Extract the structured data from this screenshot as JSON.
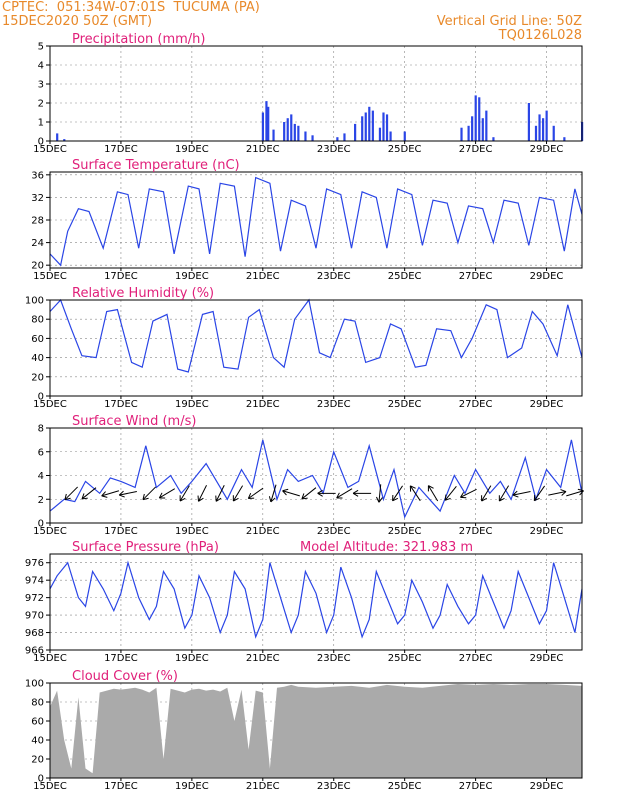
{
  "header": {
    "source": "CPTEC:",
    "coords": "051:34W-07:01S",
    "location": "TUCUMA (PA)",
    "datetime": "15DEC2020 50Z (GMT)",
    "grid_note": "Vertical Grid Line: 50Z",
    "code": "TQ0126L028"
  },
  "colors": {
    "header": "#e8892a",
    "title": "#e0207a",
    "series": "#2a45e6",
    "cloud": "#aaaaaa",
    "arrow": "#000000"
  },
  "x_axis": {
    "day_range": [
      15,
      30
    ],
    "tick_days": [
      15,
      17,
      19,
      21,
      23,
      25,
      27,
      29
    ],
    "tick_labels": [
      "15DEC",
      "17DEC",
      "19DEC",
      "21DEC",
      "23DEC",
      "25DEC",
      "27DEC",
      "29DEC"
    ]
  },
  "chart_data": [
    {
      "id": "precip",
      "type": "bar",
      "title": "Precipitation (mm/h)",
      "ylim": [
        0,
        5
      ],
      "yticks": [
        0,
        1,
        2,
        3,
        4,
        5
      ],
      "x": [
        15.2,
        15.4,
        21.0,
        21.1,
        21.15,
        21.3,
        21.6,
        21.7,
        21.8,
        21.9,
        22.0,
        22.2,
        22.4,
        23.1,
        23.3,
        23.6,
        23.8,
        23.9,
        24.0,
        24.1,
        24.3,
        24.4,
        24.5,
        24.6,
        25.0,
        26.6,
        26.8,
        26.9,
        27.0,
        27.1,
        27.2,
        27.3,
        27.5,
        28.5,
        28.7,
        28.8,
        28.9,
        29.0,
        29.2,
        29.5,
        30.0
      ],
      "values": [
        0.4,
        0.1,
        1.5,
        2.1,
        1.8,
        0.6,
        1.0,
        1.2,
        1.4,
        0.9,
        0.8,
        0.5,
        0.3,
        0.2,
        0.4,
        0.9,
        1.3,
        1.5,
        1.8,
        1.6,
        0.7,
        1.5,
        1.4,
        0.5,
        0.5,
        0.7,
        0.8,
        1.3,
        2.4,
        2.3,
        1.2,
        1.6,
        0.2,
        2.0,
        0.8,
        1.4,
        1.2,
        1.6,
        0.8,
        0.2,
        1.0
      ]
    },
    {
      "id": "temp",
      "type": "line",
      "title": "Surface Temperature (nC)",
      "ylim": [
        19.5,
        36.5
      ],
      "yticks": [
        20,
        24,
        28,
        32,
        36
      ],
      "x": [
        15.0,
        15.3,
        15.5,
        15.8,
        16.1,
        16.5,
        16.9,
        17.2,
        17.5,
        17.8,
        18.2,
        18.5,
        18.9,
        19.2,
        19.5,
        19.8,
        20.2,
        20.5,
        20.8,
        21.2,
        21.5,
        21.8,
        22.2,
        22.5,
        22.8,
        23.2,
        23.5,
        23.8,
        24.2,
        24.5,
        24.8,
        25.2,
        25.5,
        25.8,
        26.2,
        26.5,
        26.8,
        27.2,
        27.5,
        27.8,
        28.2,
        28.5,
        28.8,
        29.2,
        29.5,
        29.8,
        30.0
      ],
      "values": [
        22.0,
        20.0,
        26.0,
        30.0,
        29.5,
        23.0,
        33.0,
        32.5,
        23.0,
        33.5,
        33.0,
        22.0,
        34.0,
        33.5,
        22.0,
        34.5,
        34.0,
        21.5,
        35.5,
        34.5,
        22.5,
        31.5,
        30.5,
        23.0,
        33.5,
        32.5,
        23.0,
        33.0,
        32.0,
        23.0,
        33.5,
        32.5,
        23.5,
        31.5,
        31.0,
        24.0,
        30.5,
        30.0,
        24.0,
        31.5,
        31.0,
        23.5,
        32.0,
        31.5,
        22.5,
        33.5,
        29.0
      ]
    },
    {
      "id": "rh",
      "type": "line",
      "title": "Relative Humidity (%)",
      "ylim": [
        0,
        100
      ],
      "yticks": [
        0,
        20,
        40,
        60,
        80,
        100
      ],
      "x": [
        15.0,
        15.3,
        15.6,
        15.9,
        16.3,
        16.6,
        16.9,
        17.3,
        17.6,
        17.9,
        18.3,
        18.6,
        18.9,
        19.3,
        19.6,
        19.9,
        20.3,
        20.6,
        20.9,
        21.3,
        21.6,
        21.9,
        22.3,
        22.6,
        22.9,
        23.3,
        23.6,
        23.9,
        24.3,
        24.6,
        24.9,
        25.3,
        25.6,
        25.9,
        26.3,
        26.6,
        26.9,
        27.3,
        27.6,
        27.9,
        28.3,
        28.6,
        28.9,
        29.3,
        29.6,
        30.0
      ],
      "values": [
        88,
        100,
        70,
        42,
        40,
        88,
        90,
        35,
        30,
        78,
        85,
        28,
        25,
        85,
        88,
        30,
        28,
        82,
        90,
        40,
        30,
        80,
        100,
        45,
        40,
        80,
        78,
        35,
        40,
        75,
        70,
        30,
        32,
        70,
        68,
        40,
        60,
        95,
        90,
        40,
        50,
        88,
        75,
        42,
        95,
        40
      ]
    },
    {
      "id": "wind",
      "type": "line",
      "title": "Surface Wind (m/s)",
      "ylim": [
        0,
        8
      ],
      "yticks": [
        0,
        2,
        4,
        6,
        8
      ],
      "x": [
        15.0,
        15.4,
        15.7,
        16.0,
        16.4,
        16.7,
        17.0,
        17.4,
        17.7,
        18.0,
        18.4,
        18.7,
        19.0,
        19.4,
        19.7,
        20.0,
        20.4,
        20.7,
        21.0,
        21.4,
        21.7,
        22.0,
        22.4,
        22.7,
        23.0,
        23.4,
        23.7,
        24.0,
        24.4,
        24.7,
        25.0,
        25.4,
        25.7,
        26.0,
        26.4,
        26.7,
        27.0,
        27.4,
        27.7,
        28.0,
        28.4,
        28.7,
        29.0,
        29.4,
        29.7,
        30.0
      ],
      "values": [
        1.0,
        2.0,
        1.8,
        3.5,
        2.5,
        3.8,
        3.5,
        3.0,
        6.5,
        3.0,
        4.0,
        2.5,
        3.5,
        5.0,
        3.5,
        2.0,
        4.5,
        3.0,
        7.0,
        2.0,
        4.5,
        3.5,
        4.0,
        2.5,
        6.0,
        3.0,
        3.5,
        6.5,
        2.0,
        4.5,
        0.5,
        3.0,
        2.0,
        1.0,
        4.0,
        2.5,
        4.5,
        2.5,
        3.5,
        2.0,
        5.5,
        2.0,
        4.5,
        3.0,
        7.0,
        2.5
      ],
      "arrows": [
        {
          "x": 15.6,
          "u": 1,
          "v": 1
        },
        {
          "x": 16.1,
          "u": 1,
          "v": 0.8
        },
        {
          "x": 16.7,
          "u": 1,
          "v": 0.3
        },
        {
          "x": 17.2,
          "u": 1,
          "v": 0.2
        },
        {
          "x": 17.8,
          "u": 1,
          "v": 1
        },
        {
          "x": 18.3,
          "u": 1,
          "v": 0.6
        },
        {
          "x": 18.8,
          "u": 0.6,
          "v": 1
        },
        {
          "x": 19.3,
          "u": 0.5,
          "v": 1
        },
        {
          "x": 19.8,
          "u": 0.5,
          "v": 1
        },
        {
          "x": 20.3,
          "u": 0.6,
          "v": 1
        },
        {
          "x": 20.8,
          "u": 1,
          "v": 0.7
        },
        {
          "x": 21.3,
          "u": 0.3,
          "v": 1
        },
        {
          "x": 21.8,
          "u": 1,
          "v": -0.3
        },
        {
          "x": 22.3,
          "u": 1,
          "v": 0.8
        },
        {
          "x": 22.8,
          "u": 1,
          "v": 0
        },
        {
          "x": 23.3,
          "u": 1,
          "v": 0.6
        },
        {
          "x": 23.8,
          "u": 1,
          "v": 0
        },
        {
          "x": 24.3,
          "u": 0.1,
          "v": 1
        },
        {
          "x": 24.8,
          "u": 0.4,
          "v": 0.6
        },
        {
          "x": 25.3,
          "u": 0.4,
          "v": -0.6
        },
        {
          "x": 25.8,
          "u": 0.3,
          "v": -0.5
        },
        {
          "x": 26.3,
          "u": 0.8,
          "v": 1
        },
        {
          "x": 26.8,
          "u": 1,
          "v": 0.5
        },
        {
          "x": 27.3,
          "u": 0.6,
          "v": 1
        },
        {
          "x": 27.8,
          "u": 0.6,
          "v": 1
        },
        {
          "x": 28.3,
          "u": 1,
          "v": 0.2
        },
        {
          "x": 28.8,
          "u": 0.7,
          "v": 1
        },
        {
          "x": 29.3,
          "u": -1,
          "v": -0.2
        },
        {
          "x": 29.8,
          "u": -1,
          "v": -0.3
        }
      ]
    },
    {
      "id": "pressure",
      "type": "line",
      "title": "Surface Pressure (hPa)",
      "ylim": [
        966,
        977
      ],
      "yticks": [
        966,
        968,
        970,
        972,
        974,
        976
      ],
      "subtitle": "Model Altitude: 321.983 m",
      "x": [
        15.0,
        15.2,
        15.5,
        15.8,
        16.0,
        16.2,
        16.5,
        16.8,
        17.0,
        17.2,
        17.5,
        17.8,
        18.0,
        18.2,
        18.5,
        18.8,
        19.0,
        19.2,
        19.5,
        19.8,
        20.0,
        20.2,
        20.5,
        20.8,
        21.0,
        21.2,
        21.5,
        21.8,
        22.0,
        22.2,
        22.5,
        22.8,
        23.0,
        23.2,
        23.5,
        23.8,
        24.0,
        24.2,
        24.5,
        24.8,
        25.0,
        25.2,
        25.5,
        25.8,
        26.0,
        26.2,
        26.5,
        26.8,
        27.0,
        27.2,
        27.5,
        27.8,
        28.0,
        28.2,
        28.5,
        28.8,
        29.0,
        29.2,
        29.5,
        29.8,
        30.0
      ],
      "values": [
        973,
        974.5,
        976,
        972,
        971,
        975,
        973,
        970.5,
        972.5,
        976,
        972,
        969.5,
        971,
        975,
        973,
        968.5,
        970,
        974.5,
        972,
        968,
        970,
        975,
        973,
        967.5,
        969.5,
        976,
        972,
        968,
        970,
        975,
        972.5,
        968,
        970,
        975.5,
        972,
        967.5,
        969.5,
        975,
        972,
        969,
        970,
        974,
        971.5,
        968.5,
        970,
        973.5,
        971,
        969,
        970,
        974.5,
        971.5,
        968.5,
        970.5,
        975,
        972,
        969,
        970.5,
        976,
        972,
        968,
        973
      ]
    },
    {
      "id": "cloud",
      "type": "area",
      "title": "Cloud Cover (%)",
      "ylim": [
        0,
        100
      ],
      "yticks": [
        0,
        20,
        40,
        60,
        80,
        100
      ],
      "x": [
        15.0,
        15.2,
        15.4,
        15.6,
        15.8,
        16.0,
        16.2,
        16.4,
        16.6,
        16.8,
        17.0,
        17.2,
        17.4,
        17.6,
        17.8,
        18.0,
        18.2,
        18.4,
        18.6,
        18.8,
        19.0,
        19.2,
        19.4,
        19.6,
        19.8,
        20.0,
        20.2,
        20.4,
        20.6,
        20.8,
        21.0,
        21.2,
        21.4,
        21.6,
        21.8,
        22.0,
        22.5,
        23.0,
        23.5,
        24.0,
        24.5,
        25.0,
        25.5,
        26.0,
        26.5,
        27.0,
        27.5,
        28.0,
        28.5,
        29.0,
        29.5,
        30.0
      ],
      "values": [
        75,
        92,
        40,
        10,
        85,
        10,
        5,
        90,
        92,
        94,
        93,
        94,
        95,
        93,
        90,
        95,
        20,
        94,
        92,
        90,
        93,
        94,
        92,
        93,
        91,
        95,
        60,
        93,
        30,
        92,
        90,
        10,
        95,
        96,
        98,
        96,
        95,
        96,
        97,
        95,
        98,
        96,
        95,
        97,
        99,
        98,
        99,
        98,
        99,
        99,
        98,
        97
      ]
    }
  ]
}
